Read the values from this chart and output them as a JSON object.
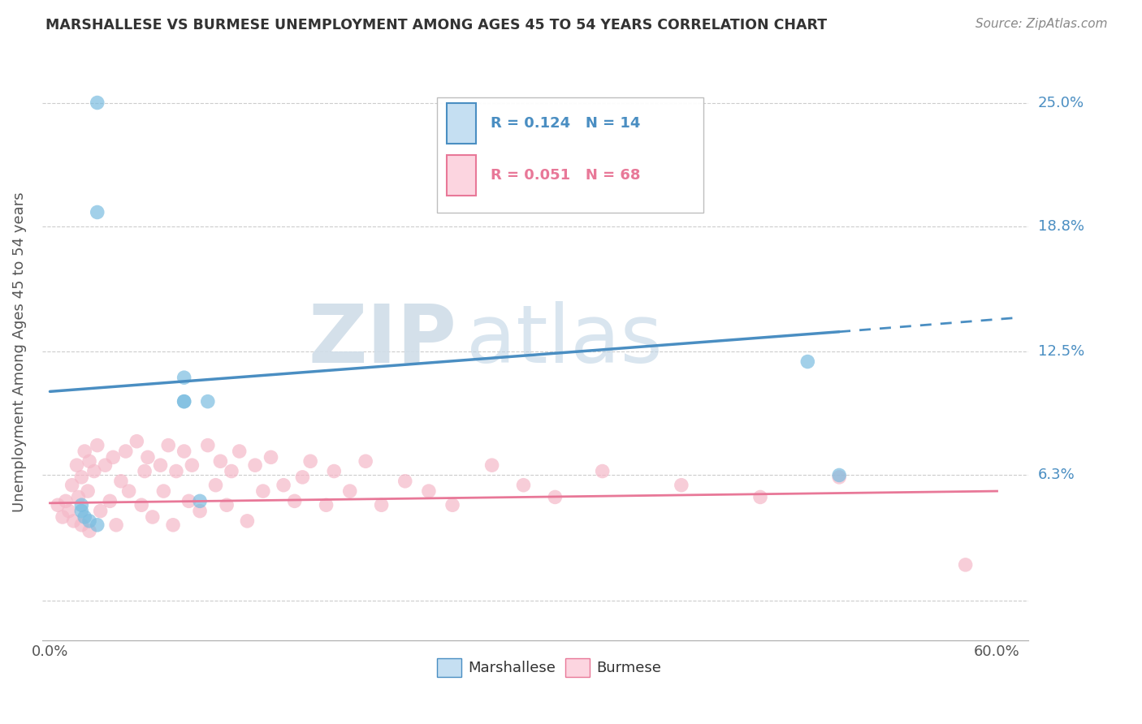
{
  "title": "MARSHALLESE VS BURMESE UNEMPLOYMENT AMONG AGES 45 TO 54 YEARS CORRELATION CHART",
  "source": "Source: ZipAtlas.com",
  "ylabel": "Unemployment Among Ages 45 to 54 years",
  "xlim": [
    -0.005,
    0.62
  ],
  "ylim": [
    -0.02,
    0.27
  ],
  "xtick_values": [
    0.0,
    0.6
  ],
  "xticklabels": [
    "0.0%",
    "60.0%"
  ],
  "ytick_values": [
    0.0,
    0.063,
    0.125,
    0.188,
    0.25
  ],
  "ytick_labels": [
    "",
    "6.3%",
    "12.5%",
    "18.8%",
    "25.0%"
  ],
  "marshallese_R": 0.124,
  "marshallese_N": 14,
  "burmese_R": 0.051,
  "burmese_N": 68,
  "marshallese_color": "#7bbde0",
  "burmese_color": "#f5b8c8",
  "marshallese_line_color": "#4a8ec2",
  "burmese_line_color": "#e87898",
  "marshallese_line_x0": 0.0,
  "marshallese_line_y0": 0.105,
  "marshallese_line_x1": 0.5,
  "marshallese_line_y1": 0.135,
  "marshallese_line_solid_end": 0.5,
  "burmese_line_x0": 0.0,
  "burmese_line_y0": 0.049,
  "burmese_line_x1": 0.6,
  "burmese_line_y1": 0.055,
  "marshallese_x": [
    0.03,
    0.03,
    0.085,
    0.085,
    0.1,
    0.48,
    0.5,
    0.02,
    0.02,
    0.022,
    0.025,
    0.03,
    0.095,
    0.085
  ],
  "marshallese_y": [
    0.25,
    0.195,
    0.1,
    0.1,
    0.1,
    0.12,
    0.063,
    0.048,
    0.045,
    0.042,
    0.04,
    0.038,
    0.05,
    0.112
  ],
  "burmese_x": [
    0.005,
    0.008,
    0.01,
    0.012,
    0.014,
    0.015,
    0.017,
    0.018,
    0.02,
    0.02,
    0.022,
    0.024,
    0.025,
    0.025,
    0.028,
    0.03,
    0.032,
    0.035,
    0.038,
    0.04,
    0.042,
    0.045,
    0.048,
    0.05,
    0.055,
    0.058,
    0.06,
    0.062,
    0.065,
    0.07,
    0.072,
    0.075,
    0.078,
    0.08,
    0.085,
    0.088,
    0.09,
    0.095,
    0.1,
    0.105,
    0.108,
    0.112,
    0.115,
    0.12,
    0.125,
    0.13,
    0.135,
    0.14,
    0.148,
    0.155,
    0.16,
    0.165,
    0.175,
    0.18,
    0.19,
    0.2,
    0.21,
    0.225,
    0.24,
    0.255,
    0.28,
    0.3,
    0.32,
    0.35,
    0.4,
    0.45,
    0.5,
    0.58
  ],
  "burmese_y": [
    0.048,
    0.042,
    0.05,
    0.045,
    0.058,
    0.04,
    0.068,
    0.052,
    0.062,
    0.038,
    0.075,
    0.055,
    0.07,
    0.035,
    0.065,
    0.078,
    0.045,
    0.068,
    0.05,
    0.072,
    0.038,
    0.06,
    0.075,
    0.055,
    0.08,
    0.048,
    0.065,
    0.072,
    0.042,
    0.068,
    0.055,
    0.078,
    0.038,
    0.065,
    0.075,
    0.05,
    0.068,
    0.045,
    0.078,
    0.058,
    0.07,
    0.048,
    0.065,
    0.075,
    0.04,
    0.068,
    0.055,
    0.072,
    0.058,
    0.05,
    0.062,
    0.07,
    0.048,
    0.065,
    0.055,
    0.07,
    0.048,
    0.06,
    0.055,
    0.048,
    0.068,
    0.058,
    0.052,
    0.065,
    0.058,
    0.052,
    0.062,
    0.018
  ],
  "watermark_zip": "ZIP",
  "watermark_atlas": "atlas",
  "watermark_color": "#c5d8ea",
  "background_color": "#ffffff",
  "grid_color": "#cccccc",
  "legend_items": [
    {
      "label": "R = 0.124   N = 14",
      "color": "#4a8ec2",
      "face": "#c5dff2"
    },
    {
      "label": "R = 0.051   N = 68",
      "color": "#e87898",
      "face": "#fcd5e0"
    }
  ],
  "bottom_legend": [
    {
      "label": "Marshallese",
      "color": "#4a8ec2",
      "face": "#c5dff2"
    },
    {
      "label": "Burmese",
      "color": "#e87898",
      "face": "#fcd5e0"
    }
  ]
}
